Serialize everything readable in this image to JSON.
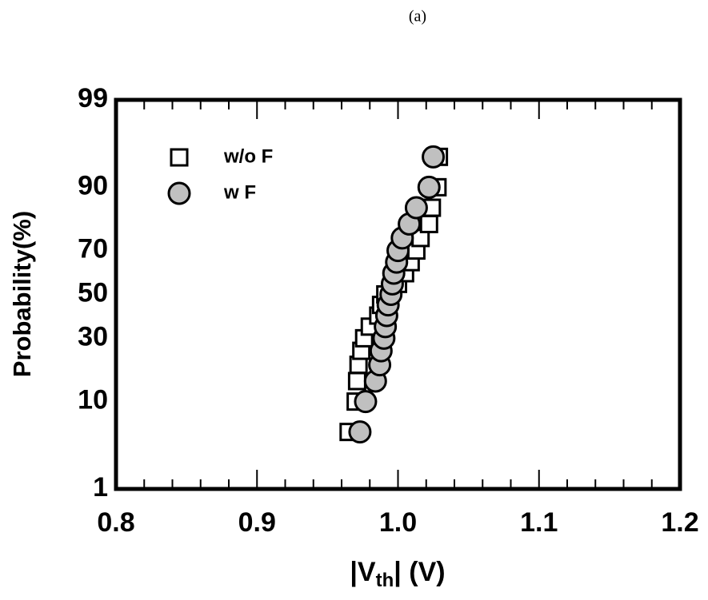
{
  "chart_data": {
    "type": "scatter",
    "title": "(a)",
    "xlabel_parts": [
      "|V",
      "th",
      "| (V)"
    ],
    "ylabel": "Probability(%)",
    "xlim": [
      0.8,
      1.2
    ],
    "xticks": [
      0.8,
      0.9,
      {
        "value": 1.0,
        "label": "1.0"
      },
      1.1,
      1.2
    ],
    "xminorticks": [
      0.82,
      0.84,
      0.86,
      0.88,
      0.92,
      0.94,
      0.96,
      0.98,
      1.02,
      1.04,
      1.06,
      1.08,
      1.12,
      1.14,
      1.16,
      1.18
    ],
    "ylim": [
      1,
      99
    ],
    "yticks": [
      1,
      10,
      30,
      50,
      70,
      90,
      99
    ],
    "yscale": "probability",
    "legend": "upper left",
    "series": [
      {
        "name": "w/o F",
        "marker": "square",
        "color": "#ffffff",
        "x": [
          0.965,
          0.97,
          0.971,
          0.972,
          0.974,
          0.976,
          0.98,
          0.986,
          0.988,
          0.991,
          1.0,
          1.005,
          1.009,
          1.013,
          1.016,
          1.022,
          1.024,
          1.028,
          1.029
        ],
        "values": [
          5,
          10,
          15,
          20,
          25,
          30,
          35,
          40,
          45,
          50,
          55,
          60,
          65,
          70,
          75,
          80,
          85,
          90,
          95
        ]
      },
      {
        "name": "w F",
        "marker": "circle",
        "color": "#c0c0c0",
        "x": [
          0.973,
          0.977,
          0.984,
          0.987,
          0.988,
          0.99,
          0.991,
          0.992,
          0.993,
          0.995,
          0.996,
          0.997,
          0.999,
          1.0,
          1.003,
          1.008,
          1.013,
          1.022,
          1.025
        ],
        "values": [
          5,
          10,
          15,
          20,
          25,
          30,
          35,
          40,
          45,
          50,
          55,
          60,
          65,
          70,
          75,
          80,
          85,
          90,
          95
        ]
      }
    ]
  }
}
